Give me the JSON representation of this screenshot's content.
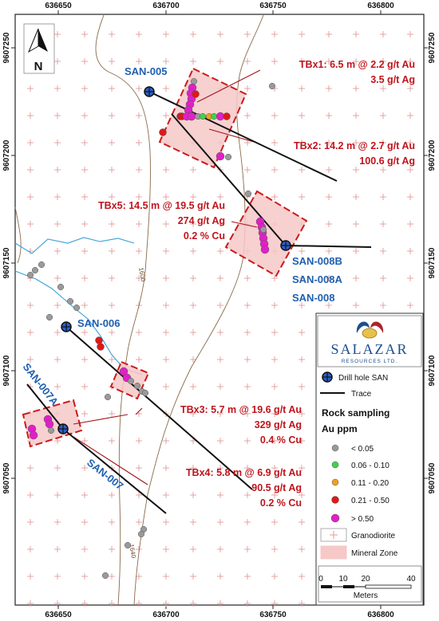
{
  "map": {
    "x_ticks": [
      "636650",
      "636700",
      "636750",
      "636800"
    ],
    "y_ticks": [
      "9607250",
      "9607200",
      "9607150",
      "9607100",
      "9607050"
    ],
    "north_label": "N",
    "drill_holes": [
      "SAN-005",
      "SAN-008B",
      "SAN-008A",
      "SAN-008",
      "SAN-006",
      "SAN-007A",
      "SAN-007"
    ],
    "contours": [
      "1600",
      "1640"
    ],
    "annotations": [
      [
        "TBx1: 6.5 m @ 2.2 g/t Au",
        "3.5 g/t Ag"
      ],
      [
        "TBx2: 14.2 m @ 2.7 g/t Au",
        "100.6 g/t Ag"
      ],
      [
        "TBx5: 14.5 m @ 19.5 g/t Au",
        "274 g/t Ag",
        "0.2 % Cu"
      ],
      [
        "TBx3: 5.7 m @ 19.6 g/t Au",
        "329 g/t Ag",
        "0.4 % Cu"
      ],
      [
        "TBx4: 5.8 m @ 6.9 g/t Au",
        "90.5 g/t Ag",
        "0.2 % Cu"
      ]
    ]
  },
  "legend": {
    "company": "SALAZAR",
    "company_sub": "RESOURCES LTD.",
    "drill_hole": "Drill hole SAN",
    "trace": "Trace",
    "rock_sampling": "Rock sampling",
    "au_ppm": "Au ppm",
    "classes": [
      {
        "label": "< 0.05",
        "color": "#9a9a9a"
      },
      {
        "label": "0.06 - 0.10",
        "color": "#3fd34a"
      },
      {
        "label": "0.11 - 0.20",
        "color": "#f0a020"
      },
      {
        "label": "0.21 - 0.50",
        "color": "#e01818"
      },
      {
        "label": "> 0.50",
        "color": "#e020c8"
      }
    ],
    "granodiorite": "Granodiorite",
    "mineral_zone": "Mineral Zone",
    "scale_ticks": [
      "0",
      "10",
      "20",
      "40"
    ],
    "scale_unit": "Meters"
  },
  "colors": {
    "hole_label": "#1f5fb0",
    "annotation": "#c0141c",
    "mineral_zone_fill": "#f6c8c8",
    "mineral_zone_edge": "#cc1a1a",
    "stream": "#3a9fd6",
    "contour": "#8a6a4a",
    "grid_cross": "#e08a8a"
  }
}
